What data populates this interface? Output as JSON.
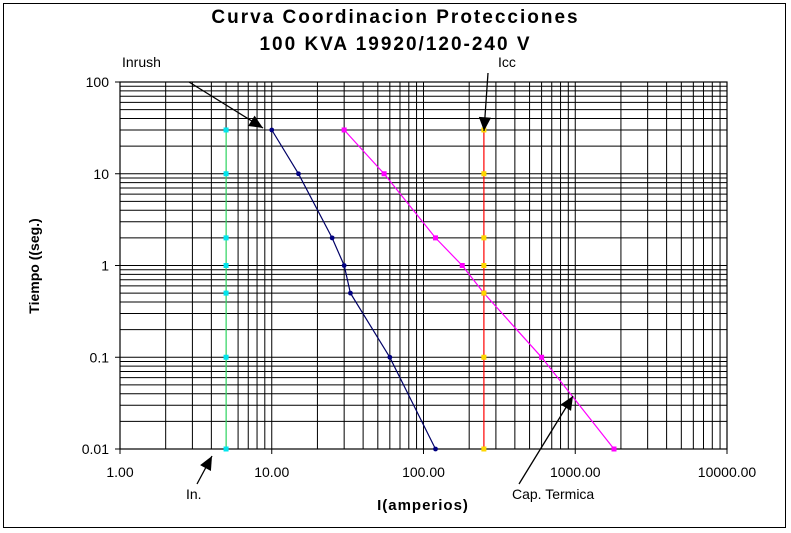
{
  "chart_data": {
    "type": "line",
    "title": [
      "Curva Coordinacion Protecciones",
      "100 KVA 19920/120-240 V"
    ],
    "xlabel": "I(amperios)",
    "ylabel": "Tiempo ((seg.)",
    "xscale": "log",
    "yscale": "log",
    "xlim": [
      1,
      10000
    ],
    "ylim": [
      0.01,
      100
    ],
    "x_tick_labels": [
      "1.00",
      "10.00",
      "100.00",
      "1000.00",
      "10000.00"
    ],
    "y_tick_labels": [
      "0.01",
      "0.1",
      "1",
      "10",
      "100"
    ],
    "grid": true,
    "legend": "none",
    "series": [
      {
        "color": "#33dd66",
        "marker_color": "#00e5ee",
        "x": [
          5,
          5,
          5,
          5,
          5,
          5,
          5
        ],
        "y": [
          30,
          10,
          2,
          1,
          0.5,
          0.1,
          0.01
        ]
      },
      {
        "color": "#000066",
        "marker_color": "#000080",
        "x": [
          10,
          15,
          25,
          30,
          33,
          60,
          120
        ],
        "y": [
          30,
          10,
          2,
          1,
          0.5,
          0.1,
          0.01
        ]
      },
      {
        "color": "#ff00ff",
        "marker_color": "#ff00ff",
        "x": [
          30,
          55,
          120,
          180,
          250,
          600,
          1800
        ],
        "y": [
          30,
          10,
          2,
          1,
          0.5,
          0.1,
          0.01
        ]
      },
      {
        "color": "#ff0000",
        "marker_color": "#ffd700",
        "x": [
          250,
          250,
          250,
          250,
          250,
          250,
          250
        ],
        "y": [
          30,
          10,
          2,
          1,
          0.5,
          0.1,
          0.01
        ]
      }
    ],
    "annotations": [
      {
        "text": "Inrush",
        "x": 10,
        "y": 30
      },
      {
        "text": "Icc",
        "x": 250,
        "y": 30
      },
      {
        "text": "In.",
        "x": 5,
        "y": 0.01
      },
      {
        "text": "Cap. Termica",
        "x": 900,
        "y": 0.04
      }
    ]
  }
}
